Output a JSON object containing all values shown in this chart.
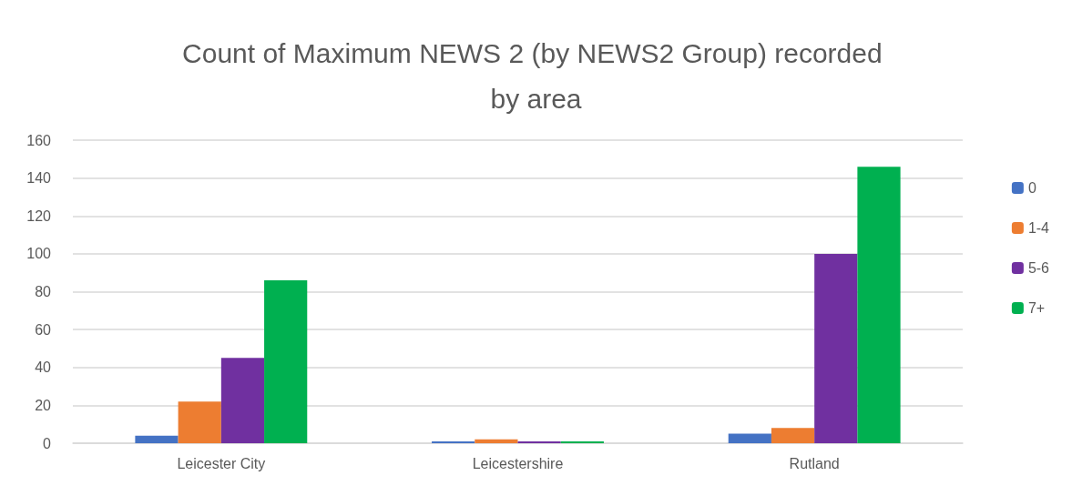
{
  "chart_data": {
    "type": "bar",
    "title": "Count of Maximum NEWS 2 (by NEWS2 Group) recorded by area",
    "categories": [
      "Leicester City",
      "Leicestershire",
      "Rutland"
    ],
    "series": [
      {
        "name": "0",
        "color": "#4472c4",
        "values": [
          4,
          1,
          5
        ]
      },
      {
        "name": "1-4",
        "color": "#ed7d31",
        "values": [
          22,
          2,
          8
        ]
      },
      {
        "name": "5-6",
        "color": "#7030a0",
        "values": [
          45,
          1,
          100
        ]
      },
      {
        "name": "7+",
        "color": "#00b050",
        "values": [
          86,
          1,
          146
        ]
      }
    ],
    "ylim": [
      0,
      160
    ],
    "yticks": [
      0,
      20,
      40,
      60,
      80,
      100,
      120,
      140,
      160
    ],
    "grid": "y",
    "legend": "right"
  }
}
